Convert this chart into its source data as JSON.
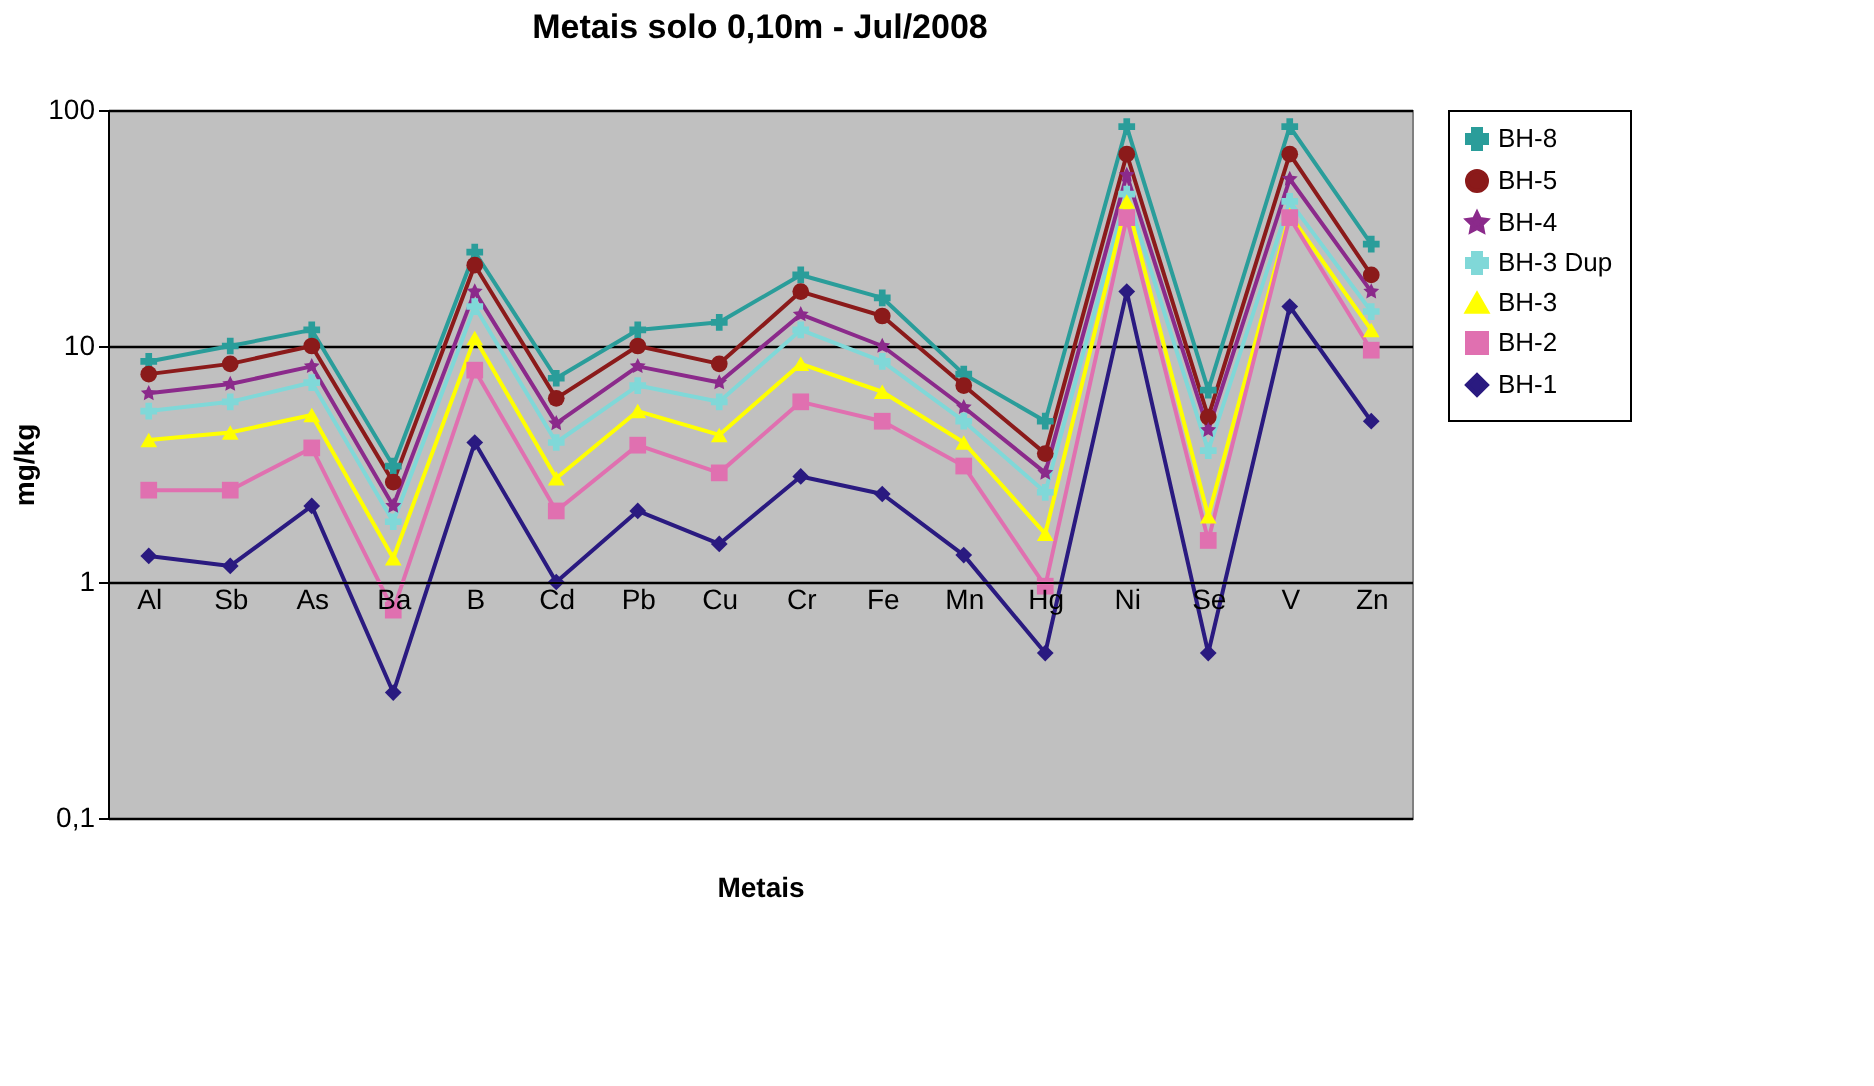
{
  "chart_data": {
    "type": "line",
    "title": "Metais solo 0,10m - Jul/2008",
    "xlabel": "Metais",
    "ylabel": "mg/kg",
    "categories": [
      "Al",
      "Sb",
      "As",
      "Ba",
      "B",
      "Cd",
      "Pb",
      "Cu",
      "Cr",
      "Fe",
      "Mn",
      "Hg",
      "Ni",
      "Se",
      "V",
      "Zn"
    ],
    "series": [
      {
        "name": "BH-8",
        "color": "#2a9d9a",
        "marker": "cross",
        "values": [
          8.6,
          10,
          11.7,
          3.1,
          25,
          7.3,
          11.7,
          12.6,
          20,
          16,
          7.6,
          4.8,
          85,
          6.5,
          85,
          27
        ]
      },
      {
        "name": "BH-5",
        "color": "#8b1a1a",
        "marker": "circle",
        "values": [
          7.6,
          8.4,
          10,
          2.65,
          22,
          6.0,
          10,
          8.4,
          17,
          13.4,
          6.8,
          3.5,
          65,
          5.0,
          65,
          20
        ]
      },
      {
        "name": "BH-4",
        "color": "#8b2a8b",
        "marker": "star",
        "values": [
          6.3,
          6.9,
          8.2,
          2.1,
          17,
          4.7,
          8.2,
          7,
          13.6,
          10,
          5.5,
          2.9,
          53,
          4.4,
          51,
          17
        ]
      },
      {
        "name": "BH-3 Dup",
        "color": "#80d8d8",
        "marker": "cross",
        "values": [
          5.3,
          5.8,
          7,
          1.8,
          14.7,
          3.9,
          6.8,
          5.8,
          11.7,
          8.6,
          4.8,
          2.4,
          44,
          3.6,
          41,
          14
        ]
      },
      {
        "name": "BH-3",
        "color": "#ffff00",
        "marker": "triangle",
        "values": [
          4.0,
          4.3,
          5.1,
          1.26,
          10.8,
          2.75,
          5.3,
          4.2,
          8.4,
          6.4,
          3.9,
          1.6,
          41,
          1.9,
          36,
          11.7
        ]
      },
      {
        "name": "BH-2",
        "color": "#e070b0",
        "marker": "square",
        "values": [
          2.45,
          2.45,
          3.7,
          0.76,
          7.9,
          2.0,
          3.8,
          2.9,
          5.8,
          4.8,
          3.1,
          0.96,
          35,
          1.5,
          35,
          9.6
        ]
      },
      {
        "name": "BH-1",
        "color": "#2a1a80",
        "marker": "diamond",
        "values": [
          1.29,
          1.17,
          2.1,
          0.34,
          3.9,
          1.0,
          2.0,
          1.45,
          2.8,
          2.36,
          1.3,
          0.5,
          17,
          0.5,
          14.7,
          4.8
        ]
      }
    ],
    "log": true,
    "ylim": [
      0.1,
      100
    ],
    "yticks": [
      {
        "value": 0.1,
        "label": "0,1"
      },
      1,
      10,
      100
    ],
    "grid": "y",
    "legend": "right",
    "line_style": "solid"
  }
}
